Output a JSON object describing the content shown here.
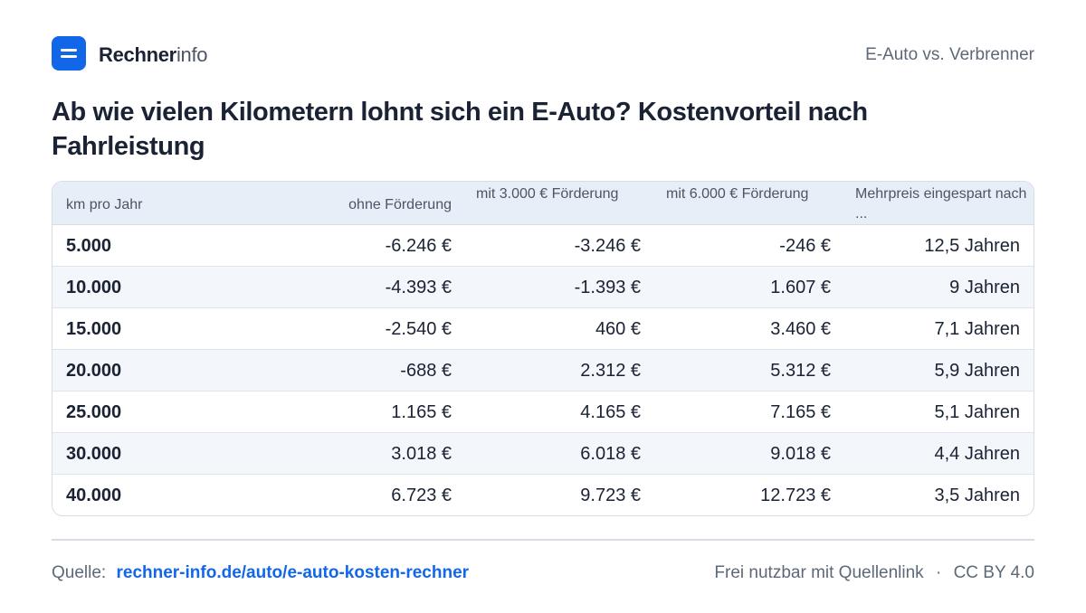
{
  "brand": {
    "name_strong": "Rechner",
    "name_light": "info",
    "icon": "rechnerinfo-logo-icon"
  },
  "header": {
    "topic": "E-Auto vs. Verbrenner"
  },
  "title": "Ab wie vielen Kilometern lohnt sich ein E-Auto? Kostenvorteil nach Fahrleistung",
  "table": {
    "headers": {
      "km": "km pro Jahr",
      "ohne": "ohne Förderung",
      "mit3000": "mit 3.000 € Förderung",
      "mit6000": "mit 6.000 € Förderung",
      "mehrpreis": "Mehrpreis eingespart nach ..."
    },
    "rows": [
      {
        "km": "5.000",
        "ohne": "-6.246 €",
        "mit3000": "-3.246 €",
        "mit6000": "-246 €",
        "mehrpreis": "12,5 Jahren"
      },
      {
        "km": "10.000",
        "ohne": "-4.393 €",
        "mit3000": "-1.393 €",
        "mit6000": "1.607 €",
        "mehrpreis": "9 Jahren"
      },
      {
        "km": "15.000",
        "ohne": "-2.540 €",
        "mit3000": "460 €",
        "mit6000": "3.460 €",
        "mehrpreis": "7,1 Jahren"
      },
      {
        "km": "20.000",
        "ohne": "-688 €",
        "mit3000": "2.312 €",
        "mit6000": "5.312 €",
        "mehrpreis": "5,9 Jahren"
      },
      {
        "km": "25.000",
        "ohne": "1.165 €",
        "mit3000": "4.165 €",
        "mit6000": "7.165 €",
        "mehrpreis": "5,1 Jahren"
      },
      {
        "km": "30.000",
        "ohne": "3.018 €",
        "mit3000": "6.018 €",
        "mit6000": "9.018 €",
        "mehrpreis": "4,4 Jahren"
      },
      {
        "km": "40.000",
        "ohne": "6.723 €",
        "mit3000": "9.723 €",
        "mit6000": "12.723 €",
        "mehrpreis": "3,5 Jahren"
      }
    ]
  },
  "footer": {
    "source_label": "Quelle:",
    "source_link": "rechner-info.de/auto/e-auto-kosten-rechner",
    "license_text": "Frei nutzbar mit Quellenlink",
    "separator": "·",
    "license": "CC BY 4.0"
  },
  "colors": {
    "accent": "#1267e8",
    "header_bg": "#e8eef7",
    "alt_row_bg": "#f3f6fb"
  }
}
